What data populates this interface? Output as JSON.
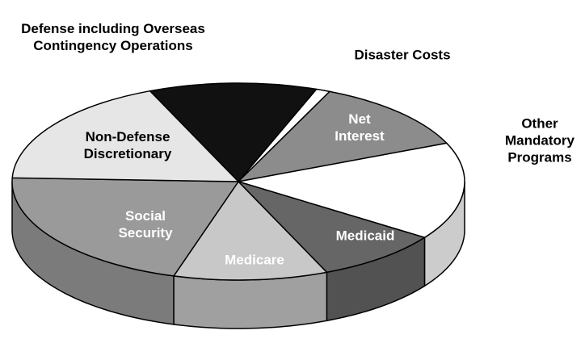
{
  "chart_data": {
    "type": "pie",
    "categories": [
      "Defense including Overseas Contingency Operations",
      "Disaster Costs",
      "Net Interest",
      "Other Mandatory Programs",
      "Medicaid",
      "Medicare",
      "Social Security",
      "Non-Defense Discretionary"
    ],
    "values": [
      12,
      1,
      12,
      16,
      9,
      11,
      21,
      18
    ],
    "colors": [
      "#111111",
      "#ffffff",
      "#8c8c8c",
      "#ffffff",
      "#666666",
      "#c8c8c8",
      "#9a9a9a",
      "#e6e6e6"
    ]
  }
}
